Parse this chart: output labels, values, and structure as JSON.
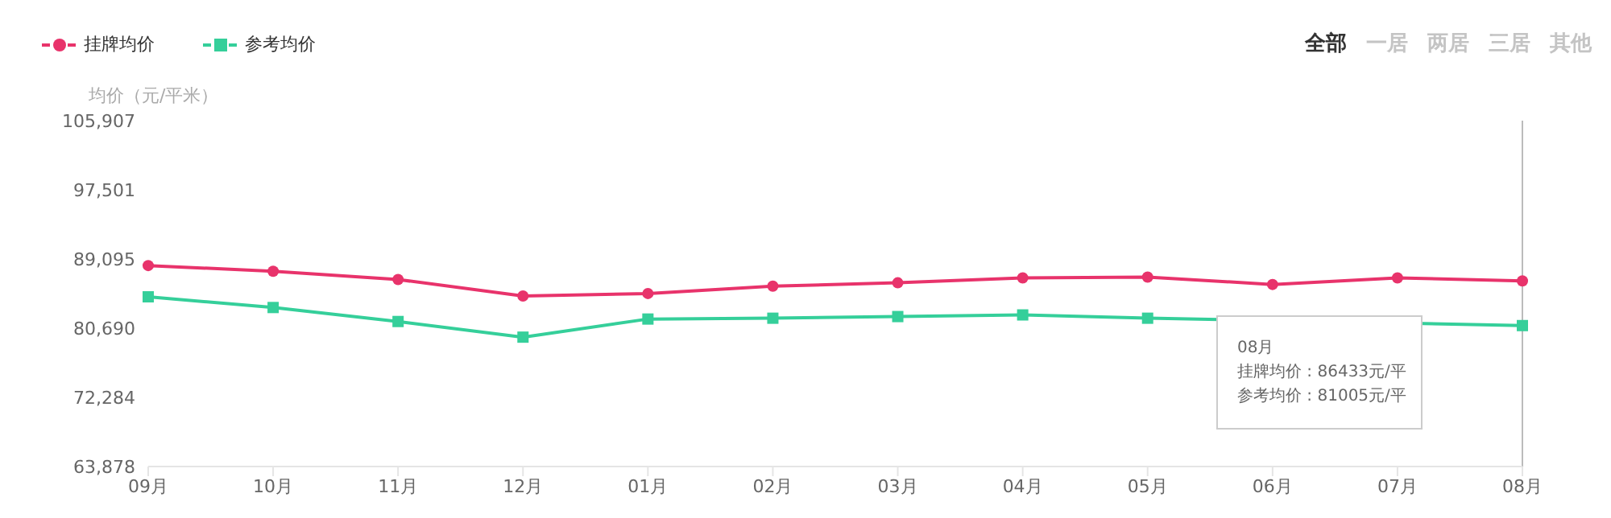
{
  "chart_data": {
    "type": "line",
    "ylabel": "均价（元/平米）",
    "categories": [
      "09月",
      "10月",
      "11月",
      "12月",
      "01月",
      "02月",
      "03月",
      "04月",
      "05月",
      "06月",
      "07月",
      "08月"
    ],
    "series": [
      {
        "name": "挂牌均价",
        "color": "#e8336b",
        "marker": "circle",
        "values": [
          88300,
          87600,
          86600,
          84600,
          84900,
          85800,
          86200,
          86800,
          86900,
          86000,
          86800,
          86433
        ]
      },
      {
        "name": "参考均价",
        "color": "#35cf9a",
        "marker": "square",
        "values": [
          84500,
          83200,
          81500,
          79600,
          81800,
          81900,
          82100,
          82300,
          81900,
          null,
          null,
          81005
        ]
      }
    ],
    "ylim": [
      63878,
      105907
    ],
    "yticks": [
      {
        "value": 63878,
        "label": "63,878"
      },
      {
        "value": 72284,
        "label": "72,284"
      },
      {
        "value": 80690,
        "label": "80,690"
      },
      {
        "value": 89095,
        "label": "89,095"
      },
      {
        "value": 97501,
        "label": "97,501"
      },
      {
        "value": 105907,
        "label": "105,907"
      }
    ],
    "grid": false,
    "legend": "top left",
    "line_style": "solid",
    "ref_lines": [
      {
        "axis": "x",
        "value": "08月",
        "color": "#bbbbbb"
      }
    ],
    "annotations": [
      "全部",
      "一居",
      "两居",
      "三居",
      "其他",
      "08月",
      "挂牌均价 : 86433元/平",
      "参考均价 : 81005元/平"
    ]
  }
}
